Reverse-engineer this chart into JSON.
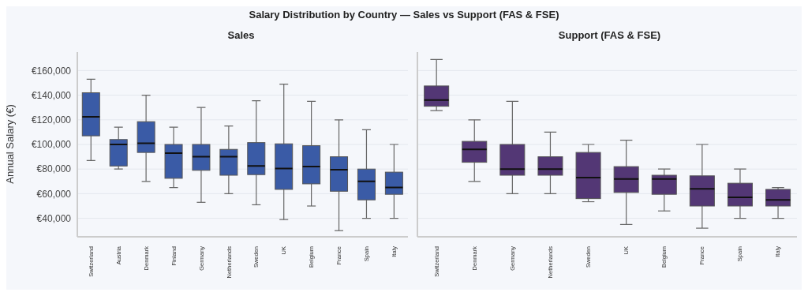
{
  "chart_data": [
    {
      "type": "box",
      "title": "Sales",
      "annotations": [
        "Salary Distribution by Country — Sales vs Support (FAS & FSE)"
      ],
      "ylabel": "Annual Salary (€)",
      "color": "#3a5ba6",
      "grid": "y",
      "categories": [
        "Switzerland",
        "Austria",
        "Denmark",
        "Finland",
        "Germany",
        "Netherlands",
        "Sweden",
        "UK",
        "Belgium",
        "France",
        "Spain",
        "Italy"
      ],
      "boxes": [
        {
          "low": 87000,
          "q1": 107000,
          "median": 122500,
          "q3": 142000,
          "high": 153000
        },
        {
          "low": 80000,
          "q1": 82500,
          "median": 100000,
          "q3": 104000,
          "high": 114000
        },
        {
          "low": 70000,
          "q1": 93500,
          "median": 101000,
          "q3": 118500,
          "high": 140000
        },
        {
          "low": 65000,
          "q1": 72500,
          "median": 93000,
          "q3": 100000,
          "high": 114000
        },
        {
          "low": 53000,
          "q1": 79000,
          "median": 90000,
          "q3": 100000,
          "high": 130000
        },
        {
          "low": 60000,
          "q1": 75000,
          "median": 90000,
          "q3": 96000,
          "high": 115000
        },
        {
          "low": 51000,
          "q1": 75500,
          "median": 82500,
          "q3": 101500,
          "high": 135500
        },
        {
          "low": 39000,
          "q1": 63500,
          "median": 80500,
          "q3": 100500,
          "high": 149000
        },
        {
          "low": 50000,
          "q1": 68000,
          "median": 82000,
          "q3": 99000,
          "high": 135000
        },
        {
          "low": 30000,
          "q1": 62000,
          "median": 79500,
          "q3": 90000,
          "high": 120000
        },
        {
          "low": 40000,
          "q1": 55000,
          "median": 70000,
          "q3": 80000,
          "high": 112000
        },
        {
          "low": 40000,
          "q1": 59500,
          "median": 65000,
          "q3": 77500,
          "high": 100000
        }
      ],
      "ylim": [
        25000,
        175000
      ],
      "yticks": [
        {
          "value": 40000,
          "label": "€40,000"
        },
        {
          "value": 60000,
          "label": "€60,000"
        },
        {
          "value": 80000,
          "label": "€80,000"
        },
        {
          "value": 100000,
          "label": "€100,000"
        },
        {
          "value": 120000,
          "label": "€120,000"
        },
        {
          "value": 140000,
          "label": "€140,000"
        },
        {
          "value": 160000,
          "label": "€160,000"
        }
      ]
    },
    {
      "type": "box",
      "title": "Support (FAS & FSE)",
      "color": "#533775",
      "grid": "y",
      "tick_labels": "x",
      "categories": [
        "Switzerland",
        "Denmark",
        "Germany",
        "Netherlands",
        "Sweden",
        "UK",
        "Belgium",
        "France",
        "Spain",
        "Italy"
      ],
      "boxes": [
        {
          "low": 127500,
          "q1": 131000,
          "median": 136000,
          "q3": 147500,
          "high": 169000
        },
        {
          "low": 70000,
          "q1": 85500,
          "median": 96000,
          "q3": 102500,
          "high": 120000
        },
        {
          "low": 60000,
          "q1": 75000,
          "median": 80000,
          "q3": 100000,
          "high": 135000
        },
        {
          "low": 60000,
          "q1": 75000,
          "median": 80000,
          "q3": 90000,
          "high": 110000
        },
        {
          "low": 53500,
          "q1": 56000,
          "median": 73000,
          "q3": 93500,
          "high": 100000
        },
        {
          "low": 35000,
          "q1": 61000,
          "median": 72000,
          "q3": 82000,
          "high": 103500
        },
        {
          "low": 46000,
          "q1": 59500,
          "median": 72000,
          "q3": 75000,
          "high": 80000
        },
        {
          "low": 32000,
          "q1": 50000,
          "median": 64000,
          "q3": 74500,
          "high": 100000
        },
        {
          "low": 40000,
          "q1": 50000,
          "median": 57000,
          "q3": 68500,
          "high": 80000
        },
        {
          "low": 40000,
          "q1": 50000,
          "median": 55000,
          "q3": 63500,
          "high": 65000
        }
      ],
      "ylim": [
        25000,
        175000
      ],
      "yticks": [
        40000,
        60000,
        80000,
        100000,
        120000,
        140000,
        160000
      ]
    }
  ]
}
